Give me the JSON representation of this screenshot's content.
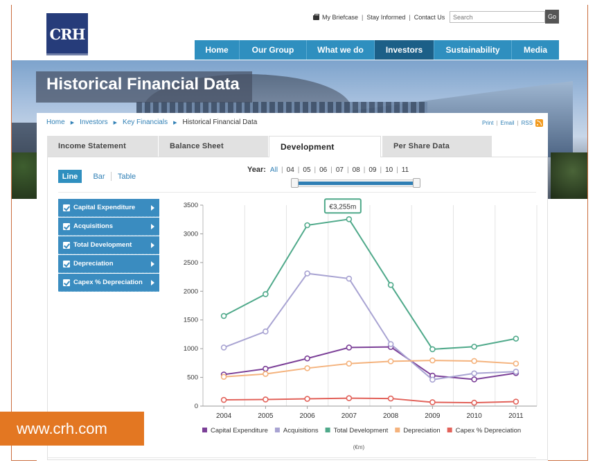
{
  "logo": {
    "text": "CRH"
  },
  "utility": {
    "briefcase": "My Briefcase",
    "stay_informed": "Stay Informed",
    "contact": "Contact Us",
    "search_placeholder": "Search",
    "go": "Go"
  },
  "nav": [
    {
      "label": "Home",
      "active": false
    },
    {
      "label": "Our Group",
      "active": false
    },
    {
      "label": "What we do",
      "active": false
    },
    {
      "label": "Investors",
      "active": true
    },
    {
      "label": "Sustainability",
      "active": false
    },
    {
      "label": "Media",
      "active": false
    }
  ],
  "banner": {
    "title": "Historical Financial Data"
  },
  "breadcrumb": {
    "items": [
      "Home",
      "Investors",
      "Key Financials"
    ],
    "current": "Historical Financial Data"
  },
  "page_tools": {
    "print": "Print",
    "email": "Email",
    "rss": "RSS"
  },
  "tabs": [
    {
      "label": "Income Statement",
      "active": false
    },
    {
      "label": "Balance Sheet",
      "active": false
    },
    {
      "label": "Development",
      "active": true
    },
    {
      "label": "Per Share Data",
      "active": false
    }
  ],
  "view": {
    "line": "Line",
    "bar": "Bar",
    "table": "Table"
  },
  "years": {
    "label": "Year:",
    "all": "All",
    "items": [
      "04",
      "05",
      "06",
      "07",
      "08",
      "09",
      "10",
      "11"
    ]
  },
  "series_menu": [
    "Capital Expenditure",
    "Acquisitions",
    "Total Development",
    "Depreciation",
    "Capex % Depreciation"
  ],
  "promo": {
    "text": "www.crh.com"
  },
  "chart_data": {
    "type": "line",
    "x": [
      "2004",
      "2005",
      "2006",
      "2007",
      "2008",
      "2009",
      "2010",
      "2011"
    ],
    "ylim": [
      0,
      3500
    ],
    "yticks": [
      "0",
      "500",
      "1000",
      "1500",
      "2000",
      "2500",
      "3000",
      "3500"
    ],
    "unit_label": "(€m)",
    "tooltip": {
      "label": "€3,255m",
      "series": "Total Development",
      "x": "2007"
    },
    "grid": true,
    "legend_position": "bottom",
    "colors": {
      "Capital Expenditure": "#7b3f97",
      "Acquisitions": "#a8a3d2",
      "Total Development": "#4fa98a",
      "Depreciation": "#f4b27c",
      "Capex % Depreciation": "#e2625a"
    },
    "series": [
      {
        "name": "Capital Expenditure",
        "values": [
          550,
          650,
          830,
          1020,
          1030,
          530,
          465,
          575
        ]
      },
      {
        "name": "Acquisitions",
        "values": [
          1020,
          1300,
          2310,
          2220,
          1080,
          460,
          570,
          600
        ]
      },
      {
        "name": "Total Development",
        "values": [
          1570,
          1950,
          3150,
          3255,
          2110,
          990,
          1035,
          1175
        ]
      },
      {
        "name": "Depreciation",
        "values": [
          510,
          560,
          660,
          740,
          780,
          795,
          785,
          740
        ]
      },
      {
        "name": "Capex % Depreciation",
        "values": [
          108,
          115,
          126,
          138,
          132,
          67,
          59,
          78
        ]
      }
    ]
  }
}
